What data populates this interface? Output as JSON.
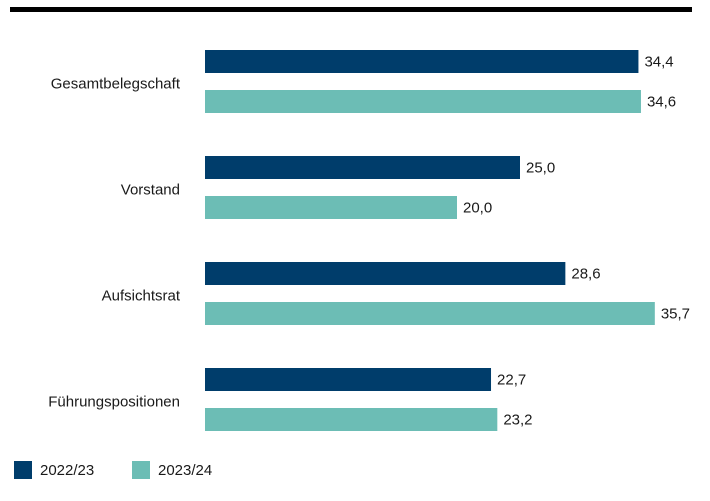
{
  "chart_data": {
    "type": "bar",
    "orientation": "horizontal",
    "categories": [
      "Gesamtbelegschaft",
      "Vorstand",
      "Aufsichtsrat",
      "Führungspositionen"
    ],
    "series": [
      {
        "name": "2022/23",
        "color": "#003d6b",
        "values": [
          34.4,
          25.0,
          28.6,
          22.7
        ],
        "value_labels": [
          "34,4",
          "25,0",
          "28,6",
          "22,7"
        ]
      },
      {
        "name": "2023/24",
        "color": "#6cbdb5",
        "values": [
          34.6,
          20.0,
          35.7,
          23.2
        ],
        "value_labels": [
          "34,6",
          "20,0",
          "35,7",
          "23,2"
        ]
      }
    ]
  }
}
